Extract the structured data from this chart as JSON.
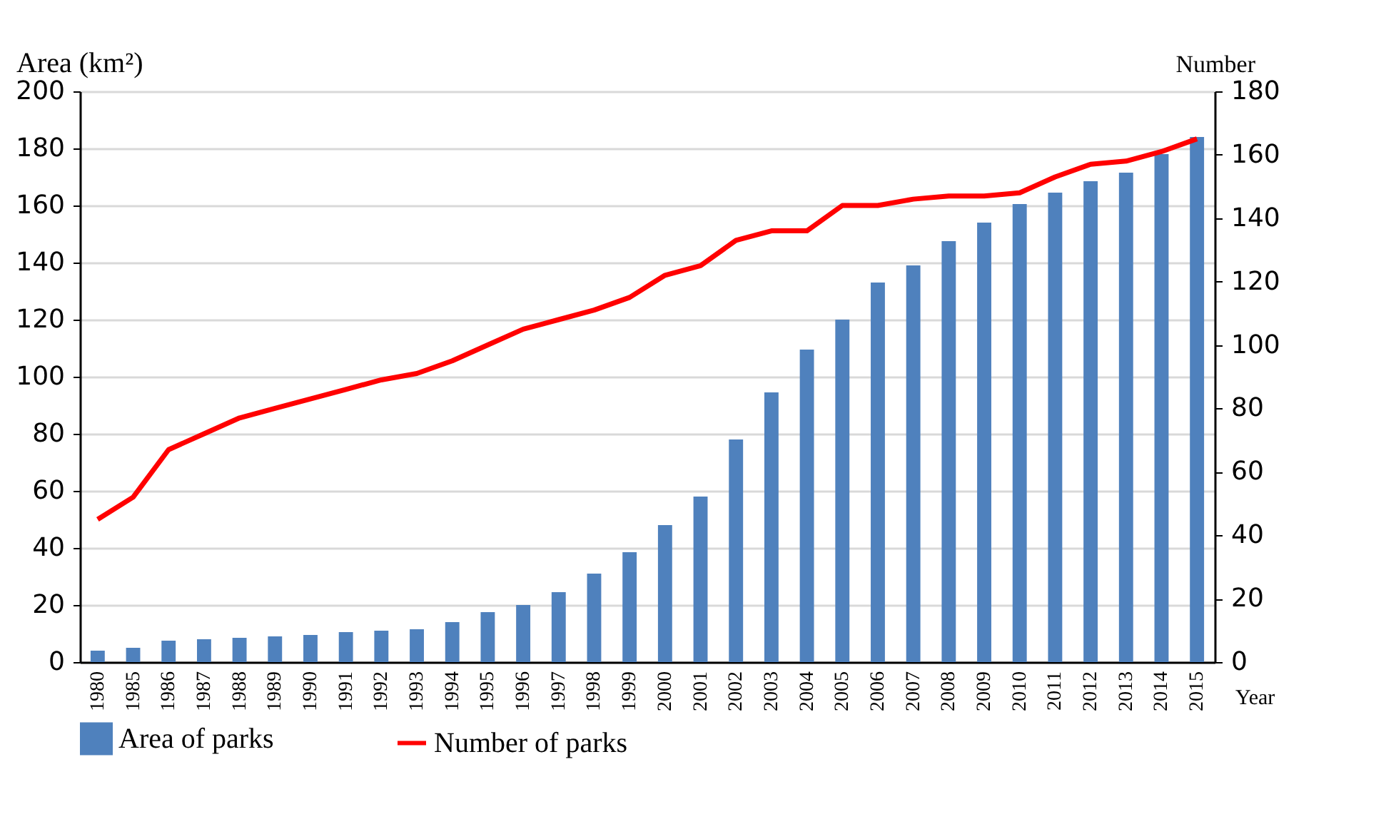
{
  "chart_data": {
    "type": "bar",
    "ylabel": "Area (km²)",
    "y2label": "Number",
    "xlabel": "Year",
    "categories": [
      "1980",
      "1985",
      "1986",
      "1987",
      "1988",
      "1989",
      "1990",
      "1991",
      "1992",
      "1993",
      "1994",
      "1995",
      "1996",
      "1997",
      "1998",
      "1999",
      "2000",
      "2001",
      "2002",
      "2003",
      "2004",
      "2005",
      "2006",
      "2007",
      "2008",
      "2009",
      "2010",
      "2011",
      "2012",
      "2013",
      "2014",
      "2015"
    ],
    "series": [
      {
        "name": "Area of parks",
        "color": "#4f81bd",
        "values": [
          4,
          5,
          7.5,
          8,
          8.5,
          9,
          9.5,
          10.5,
          11,
          11.5,
          14,
          17.5,
          20,
          24.5,
          31,
          38.5,
          48,
          58,
          78,
          94.5,
          109.5,
          120,
          133,
          139,
          147.5,
          154,
          160.5,
          164.5,
          168.5,
          171.5,
          178,
          184
        ]
      },
      {
        "name": "Number of parks",
        "type": "line",
        "axis": "y2",
        "color": "#ff0000",
        "values": [
          45,
          52,
          67,
          72,
          77,
          80,
          83,
          86,
          89,
          91,
          95,
          100,
          105,
          108,
          111,
          115,
          122,
          125,
          133,
          136,
          136,
          144,
          144,
          146,
          147,
          147,
          148,
          153,
          157,
          158,
          161,
          165
        ]
      }
    ],
    "ylim": [
      0,
      200
    ],
    "yticks": [
      0,
      20,
      40,
      60,
      80,
      100,
      120,
      140,
      160,
      180,
      200
    ],
    "y2lim": [
      0,
      180
    ],
    "y2ticks": [
      0,
      20,
      40,
      60,
      80,
      100,
      120,
      140,
      160,
      180
    ],
    "grid": "y",
    "legend": "bottom"
  }
}
